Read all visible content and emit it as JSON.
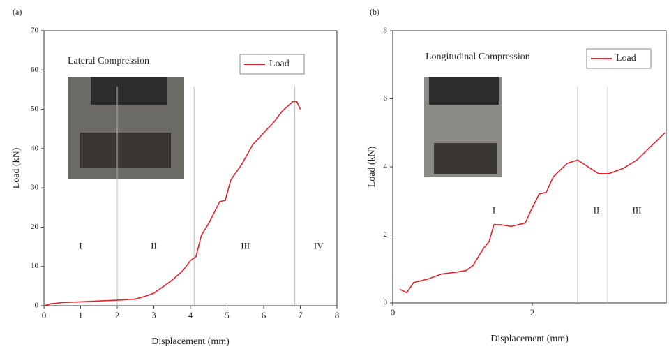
{
  "chart_data": [
    {
      "type": "line",
      "panel_label": "(a)",
      "x_label": "Displacement (mm)",
      "y_label": "Load (kN)",
      "inset_title": "Lateral Compression",
      "xlim": [
        0,
        8
      ],
      "xticks": [
        0,
        1,
        2,
        3,
        4,
        5,
        6,
        7,
        8
      ],
      "ylim": [
        0,
        70
      ],
      "yticks": [
        0,
        10,
        20,
        30,
        40,
        50,
        60,
        70
      ],
      "vlines": [
        2,
        4.1,
        6.85
      ],
      "annotations": [
        {
          "text": "I",
          "x": 1,
          "y": 15
        },
        {
          "text": "II",
          "x": 3,
          "y": 15
        },
        {
          "text": "III",
          "x": 5.5,
          "y": 15
        },
        {
          "text": "IV",
          "x": 7.5,
          "y": 15
        }
      ],
      "x": [
        0,
        0.2,
        0.5,
        1,
        1.5,
        2,
        2.5,
        2.8,
        3,
        3.2,
        3.5,
        3.8,
        4,
        4.15,
        4.3,
        4.5,
        4.8,
        4.95,
        5.1,
        5.4,
        5.7,
        6,
        6.3,
        6.5,
        6.8,
        6.9,
        7
      ],
      "series": [
        {
          "name": "Load",
          "color": "#e8202a",
          "values": [
            0,
            0.5,
            0.8,
            1,
            1.2,
            1.4,
            1.7,
            2.5,
            3.2,
            4.5,
            6.5,
            9,
            11.5,
            12.5,
            18,
            21,
            26.5,
            26.8,
            32,
            36,
            41,
            44,
            47,
            49.5,
            52,
            52,
            50
          ]
        }
      ]
    },
    {
      "type": "line",
      "panel_label": "(b)",
      "x_label": "Displacement (mm)",
      "y_label": "Load (kN)",
      "inset_title": "Longitudinal Compression",
      "xlim": [
        0,
        3.92
      ],
      "xticks": [
        0,
        2
      ],
      "ylim": [
        0,
        8
      ],
      "yticks": [
        0,
        2,
        4,
        6,
        8
      ],
      "vlines": [
        2.65,
        3.08
      ],
      "annotations": [
        {
          "text": "I",
          "x": 1.45,
          "y": 2.7
        },
        {
          "text": "II",
          "x": 2.92,
          "y": 2.7
        },
        {
          "text": "III",
          "x": 3.5,
          "y": 2.7
        }
      ],
      "x": [
        0.1,
        0.2,
        0.3,
        0.5,
        0.7,
        0.9,
        1.05,
        1.15,
        1.3,
        1.38,
        1.45,
        1.55,
        1.7,
        1.9,
        2,
        2.1,
        2.2,
        2.3,
        2.5,
        2.65,
        2.8,
        2.95,
        3.1,
        3.3,
        3.5,
        3.7,
        3.9
      ],
      "series": [
        {
          "name": "Load",
          "color": "#e8202a",
          "values": [
            0.4,
            0.3,
            0.6,
            0.7,
            0.85,
            0.9,
            0.95,
            1.1,
            1.6,
            1.8,
            2.3,
            2.3,
            2.25,
            2.35,
            2.8,
            3.2,
            3.25,
            3.7,
            4.1,
            4.2,
            4.0,
            3.8,
            3.8,
            3.95,
            4.2,
            4.6,
            5.0
          ]
        }
      ]
    }
  ]
}
